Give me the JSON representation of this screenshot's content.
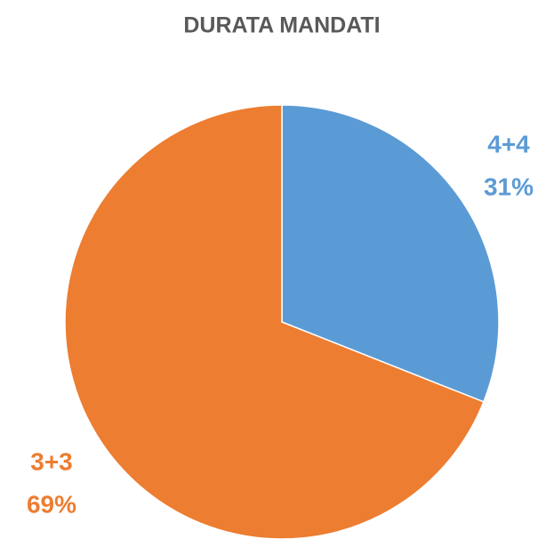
{
  "chart_data": {
    "type": "pie",
    "title": "DURATA MANDATI",
    "categories": [
      "4+4",
      "3+3"
    ],
    "values": [
      31,
      69
    ],
    "value_labels": [
      "31%",
      "69%"
    ],
    "colors": [
      "#5b9bd5",
      "#ed7d31"
    ]
  }
}
